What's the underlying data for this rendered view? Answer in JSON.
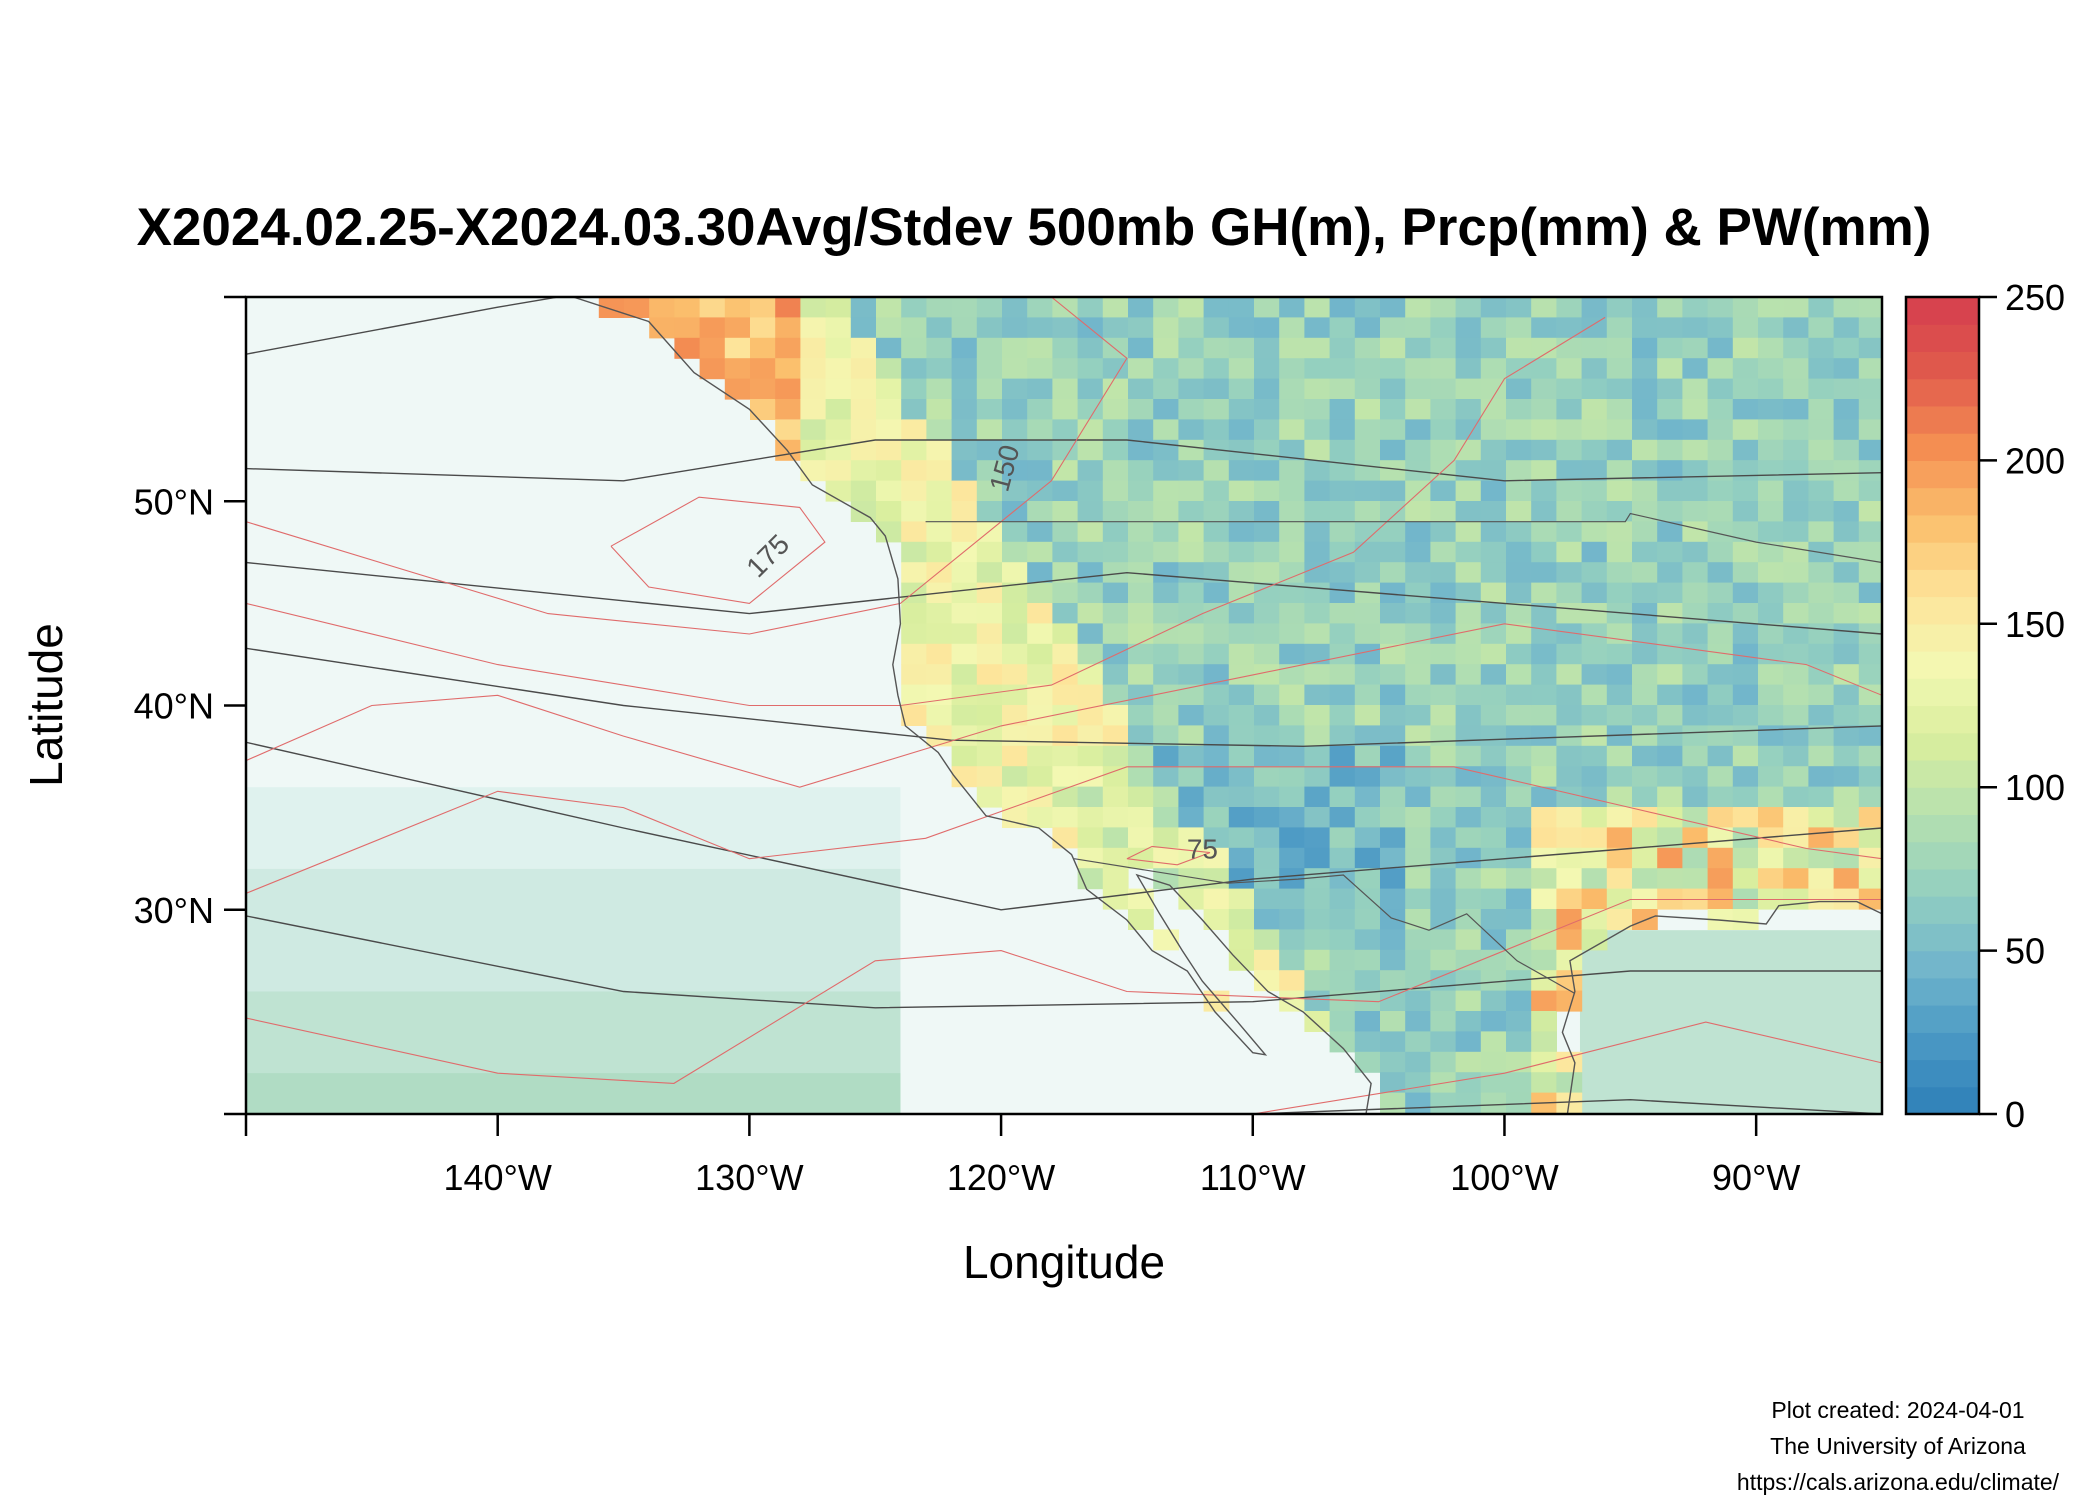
{
  "title": "X2024.02.25-X2024.03.30Avg/Stdev 500mb GH(m), Prcp(mm) & PW(mm)",
  "chart_data": {
    "type": "heatmap",
    "title": "X2024.02.25-X2024.03.30Avg/Stdev 500mb GH(m), Prcp(mm) & PW(mm)",
    "xlabel": "Longitude",
    "ylabel": "Latitude",
    "xlim": [
      -150,
      -85
    ],
    "ylim": [
      20,
      60
    ],
    "x_ticks": [
      {
        "value": -140,
        "label": "140°W"
      },
      {
        "value": -130,
        "label": "130°W"
      },
      {
        "value": -120,
        "label": "120°W"
      },
      {
        "value": -110,
        "label": "110°W"
      },
      {
        "value": -100,
        "label": "100°W"
      },
      {
        "value": -90,
        "label": "90°W"
      }
    ],
    "y_ticks": [
      {
        "value": 30,
        "label": "30°N"
      },
      {
        "value": 40,
        "label": "40°N"
      },
      {
        "value": 50,
        "label": "50°N"
      }
    ],
    "colorbar": {
      "range": [
        0,
        250
      ],
      "ticks": [
        {
          "value": 0,
          "label": "0"
        },
        {
          "value": 50,
          "label": "50"
        },
        {
          "value": 100,
          "label": "100"
        },
        {
          "value": 150,
          "label": "150"
        },
        {
          "value": 200,
          "label": "200"
        },
        {
          "value": 250,
          "label": "250"
        }
      ]
    },
    "contour_labels": [
      {
        "label": "150",
        "lon": -119.5,
        "lat": 51.5
      },
      {
        "label": "175",
        "lon": -129.0,
        "lat": 47.0
      },
      {
        "label": "75",
        "lon": -112.0,
        "lat": 32.5
      }
    ]
  },
  "credits": {
    "line1": "Plot created: 2024-04-01",
    "line2": "The University of Arizona",
    "line3": "https://cals.arizona.edu/climate/"
  },
  "colors": {
    "palette": [
      "#2e7fb8",
      "#4a98c4",
      "#72b6cb",
      "#93cfc0",
      "#b4e0b0",
      "#d8ee9e",
      "#f3f8b2",
      "#fde49a",
      "#fbbf6c",
      "#f48d52",
      "#e05a4c",
      "#d53e4f"
    ],
    "ocean_shades": [
      "#eff8f6",
      "#dff2ee",
      "#cfeae2",
      "#bfe3d2",
      "#b0dcc4"
    ],
    "gh_contour": "#4a4a4a",
    "stdev_contour": "#e06b6b",
    "coast": "#555555"
  }
}
